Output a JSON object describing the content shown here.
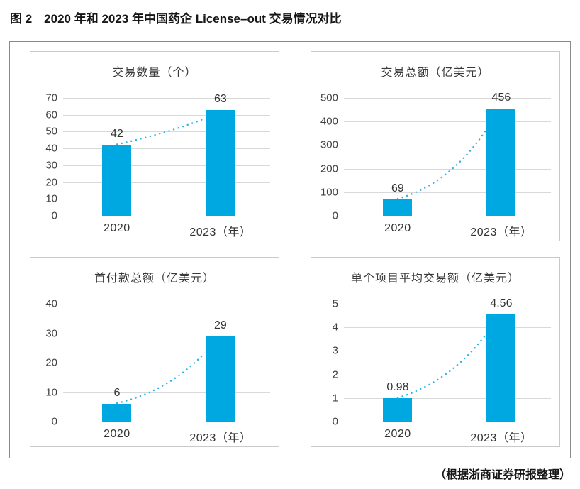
{
  "page": {
    "title": "图 2　2020 年和 2023 年中国药企 License–out 交易情况对比",
    "footer": "（根据浙商证券研报整理）"
  },
  "colors": {
    "bar": "#00a8e1",
    "dotted_trend": "#2fb4e9",
    "gridline": "#d9d9d9",
    "panel_border": "#c9c9c9",
    "outer_border": "#8a8a8a",
    "text": "#2e2e2e"
  },
  "chart_data": [
    {
      "type": "bar",
      "title": "交易数量（个）",
      "categories": [
        "2020",
        "2023（年）"
      ],
      "values": [
        42,
        63
      ],
      "value_labels": [
        "42",
        "63"
      ],
      "ylim": [
        0,
        70
      ],
      "yticks": [
        0,
        10,
        20,
        30,
        40,
        50,
        60,
        70
      ],
      "grid": true,
      "trendline": "dotted-curve"
    },
    {
      "type": "bar",
      "title": "交易总额（亿美元）",
      "categories": [
        "2020",
        "2023（年）"
      ],
      "values": [
        69,
        456
      ],
      "value_labels": [
        "69",
        "456"
      ],
      "ylim": [
        0,
        500
      ],
      "yticks": [
        0,
        100,
        200,
        300,
        400,
        500
      ],
      "grid": true,
      "trendline": "dotted-curve"
    },
    {
      "type": "bar",
      "title": "首付款总额（亿美元）",
      "categories": [
        "2020",
        "2023（年）"
      ],
      "values": [
        6,
        29
      ],
      "value_labels": [
        "6",
        "29"
      ],
      "ylim": [
        0,
        40
      ],
      "yticks": [
        0,
        10,
        20,
        30,
        40
      ],
      "grid": true,
      "trendline": "dotted-curve"
    },
    {
      "type": "bar",
      "title": "单个项目平均交易额（亿美元）",
      "categories": [
        "2020",
        "2023（年）"
      ],
      "values": [
        0.98,
        4.56
      ],
      "value_labels": [
        "0.98",
        "4.56"
      ],
      "ylim": [
        0,
        5
      ],
      "yticks": [
        0,
        1,
        2,
        3,
        4,
        5
      ],
      "grid": true,
      "trendline": "dotted-curve"
    }
  ]
}
